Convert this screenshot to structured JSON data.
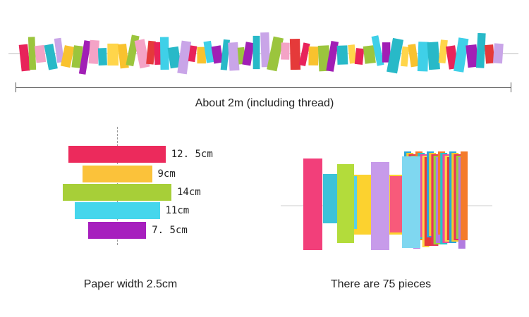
{
  "garland": {
    "length_caption": "About 2m (including thread)",
    "colors": [
      "#e8235a",
      "#f9c22e",
      "#9bc53d",
      "#3fd0e8",
      "#a11fb5",
      "#f4a3c6",
      "#28b9c8",
      "#e53a3a",
      "#ffd54a",
      "#c9a5e8"
    ]
  },
  "diagram": {
    "strips": [
      {
        "label": "12. 5cm",
        "length_cm": 12.5,
        "color": "#ec2a5c"
      },
      {
        "label": "9cm",
        "length_cm": 9,
        "color": "#fbc23a"
      },
      {
        "label": "14cm",
        "length_cm": 14,
        "color": "#a7cf38"
      },
      {
        "label": "11cm",
        "length_cm": 11,
        "color": "#45d6ec"
      },
      {
        "label": "7. 5cm",
        "length_cm": 7.5,
        "color": "#a71fbe"
      }
    ],
    "caption": "Paper width 2.5cm"
  },
  "product": {
    "caption": "There are 75 pieces"
  }
}
